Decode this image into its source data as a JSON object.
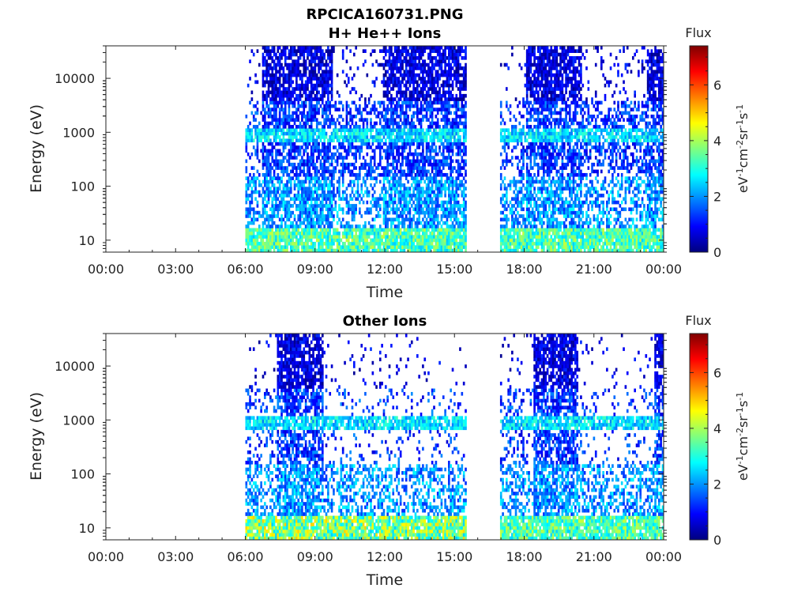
{
  "figure": {
    "title": "RPCICA160731.PNG"
  },
  "chart_data": [
    {
      "type": "heatmap",
      "title": "H+ He++ Ions",
      "xlabel": "Time",
      "ylabel": "Energy (eV)",
      "x_tick_labels": [
        "00:00",
        "03:00",
        "06:00",
        "09:00",
        "12:00",
        "15:00",
        "18:00",
        "21:00",
        "00:00"
      ],
      "y_tick_labels": [
        "10",
        "100",
        "1000",
        "10000"
      ],
      "y_tick_values": [
        10,
        100,
        1000,
        10000
      ],
      "y_scale": "log",
      "ylim": [
        6,
        40000
      ],
      "xlim_hours": [
        0,
        24
      ],
      "colorbar": {
        "label_top": "Flux",
        "label_side": "eV-1cm-2sr-1s-1",
        "ticks": [
          "0",
          "2",
          "4",
          "6"
        ],
        "range": [
          0,
          7.4
        ],
        "colormap": "jet"
      },
      "data_intervals_hours": [
        [
          6.0,
          15.5
        ],
        [
          17.0,
          24.0
        ]
      ],
      "dense_high_energy_intervals_hours": [
        [
          6.7,
          9.8
        ],
        [
          11.9,
          15.5
        ],
        [
          18.1,
          20.5
        ],
        [
          23.3,
          24.0
        ]
      ],
      "sparse_high_energy_intervals_hours": [
        [
          9.8,
          11.9
        ],
        [
          20.5,
          23.3
        ]
      ],
      "band_energy_eV": 900,
      "low_energy_peak_flux": 5
    },
    {
      "type": "heatmap",
      "title": "Other Ions",
      "xlabel": "Time",
      "ylabel": "Energy (eV)",
      "x_tick_labels": [
        "00:00",
        "03:00",
        "06:00",
        "09:00",
        "12:00",
        "15:00",
        "18:00",
        "21:00",
        "00:00"
      ],
      "y_tick_labels": [
        "10",
        "100",
        "1000",
        "10000"
      ],
      "y_tick_values": [
        10,
        100,
        1000,
        10000
      ],
      "y_scale": "log",
      "ylim": [
        6,
        40000
      ],
      "xlim_hours": [
        0,
        24
      ],
      "colorbar": {
        "label_top": "Flux",
        "label_side": "eV-1cm-2sr-1s-1",
        "ticks": [
          "0",
          "2",
          "4",
          "6"
        ],
        "range": [
          0,
          7.4
        ],
        "colormap": "jet"
      },
      "data_intervals_hours": [
        [
          6.0,
          15.5
        ],
        [
          17.0,
          24.0
        ]
      ],
      "dense_high_energy_intervals_hours": [
        [
          7.4,
          9.4
        ],
        [
          18.4,
          20.3
        ],
        [
          23.6,
          24.0
        ]
      ],
      "sparse_high_energy_intervals_hours": [
        [
          9.4,
          15.5
        ],
        [
          20.3,
          23.6
        ]
      ],
      "band_energy_eV": 900,
      "low_energy_peak_flux": 5
    }
  ]
}
